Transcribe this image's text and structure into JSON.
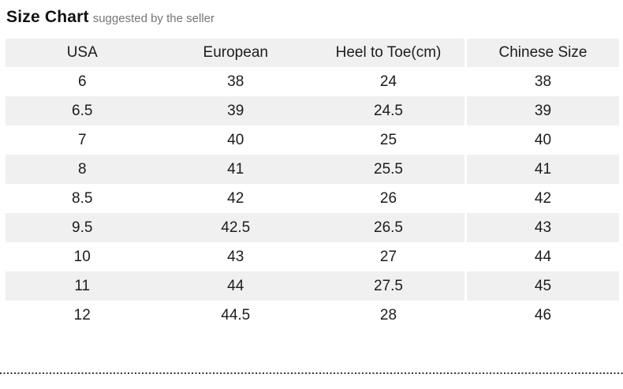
{
  "header": {
    "title": "Size Chart",
    "subtitle": "suggested by the seller"
  },
  "table": {
    "columns": [
      "USA",
      "European",
      "Heel to Toe(cm)",
      "Chinese Size"
    ],
    "rows": [
      [
        "6",
        "38",
        "24",
        "38"
      ],
      [
        "6.5",
        "39",
        "24.5",
        "39"
      ],
      [
        "7",
        "40",
        "25",
        "40"
      ],
      [
        "8",
        "41",
        "25.5",
        "41"
      ],
      [
        "8.5",
        "42",
        "26",
        "42"
      ],
      [
        "9.5",
        "42.5",
        "26.5",
        "43"
      ],
      [
        "10",
        "43",
        "27",
        "44"
      ],
      [
        "11",
        "44",
        "27.5",
        "45"
      ],
      [
        "12",
        "44.5",
        "28",
        "46"
      ]
    ]
  },
  "colors": {
    "row_stripe": "#f0f0f0",
    "text": "#1c1c1c",
    "subtitle_text": "#767676",
    "divider_dot": "#383840"
  }
}
